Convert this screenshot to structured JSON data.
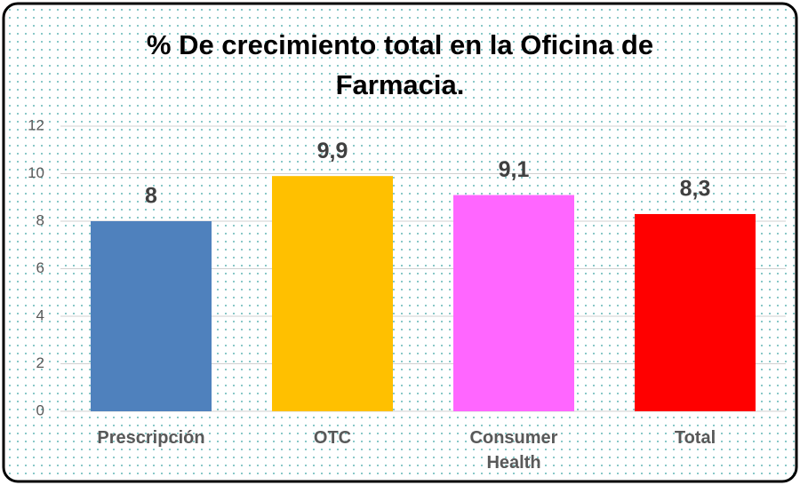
{
  "chart_data": {
    "type": "bar",
    "title": "% De crecimiento total en la Oficina de Farmacia.",
    "categories": [
      "Prescripción",
      "OTC",
      "Consumer Health",
      "Total"
    ],
    "values": [
      8,
      9.9,
      9.1,
      8.3
    ],
    "value_labels": [
      "8",
      "9,9",
      "9,1",
      "8,3"
    ],
    "colors": [
      "#4f81bd",
      "#ffc000",
      "#ff66ff",
      "#ff0000"
    ],
    "ylim": [
      0,
      12
    ],
    "yticks": [
      0,
      2,
      4,
      6,
      8,
      10,
      12
    ],
    "grid": true
  }
}
